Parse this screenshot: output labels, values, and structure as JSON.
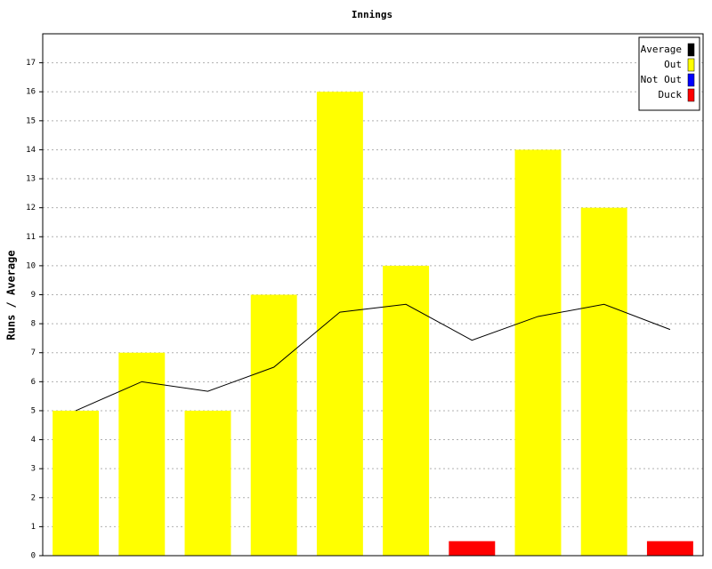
{
  "chart_data": {
    "type": "bar",
    "title": "Innings",
    "y_label": "Runs / Average",
    "categories": [
      null,
      null,
      null,
      null,
      null,
      null,
      null,
      null,
      null,
      null
    ],
    "series": [
      {
        "name": "Average",
        "type": "line",
        "color": "#000000",
        "values": [
          5,
          6,
          5.67,
          6.5,
          8.4,
          8.67,
          7.43,
          8.25,
          8.67,
          7.8
        ]
      },
      {
        "name": "Out",
        "color": "#ffff00",
        "values": [
          5,
          7,
          5,
          9,
          16,
          10,
          null,
          14,
          12,
          null
        ]
      },
      {
        "name": "Not Out",
        "color": "#0000ff",
        "values": [
          null,
          null,
          null,
          null,
          null,
          null,
          null,
          null,
          null,
          null
        ]
      },
      {
        "name": "Duck",
        "color": "#ff0000",
        "values": [
          null,
          null,
          null,
          null,
          null,
          null,
          0.5,
          null,
          null,
          0.5
        ]
      }
    ],
    "ylim": [
      0,
      18
    ],
    "yticks": [
      0,
      1,
      2,
      3,
      4,
      5,
      6,
      7,
      8,
      9,
      10,
      11,
      12,
      13,
      14,
      15,
      16,
      17
    ],
    "grid": true,
    "legend": "top-right"
  }
}
